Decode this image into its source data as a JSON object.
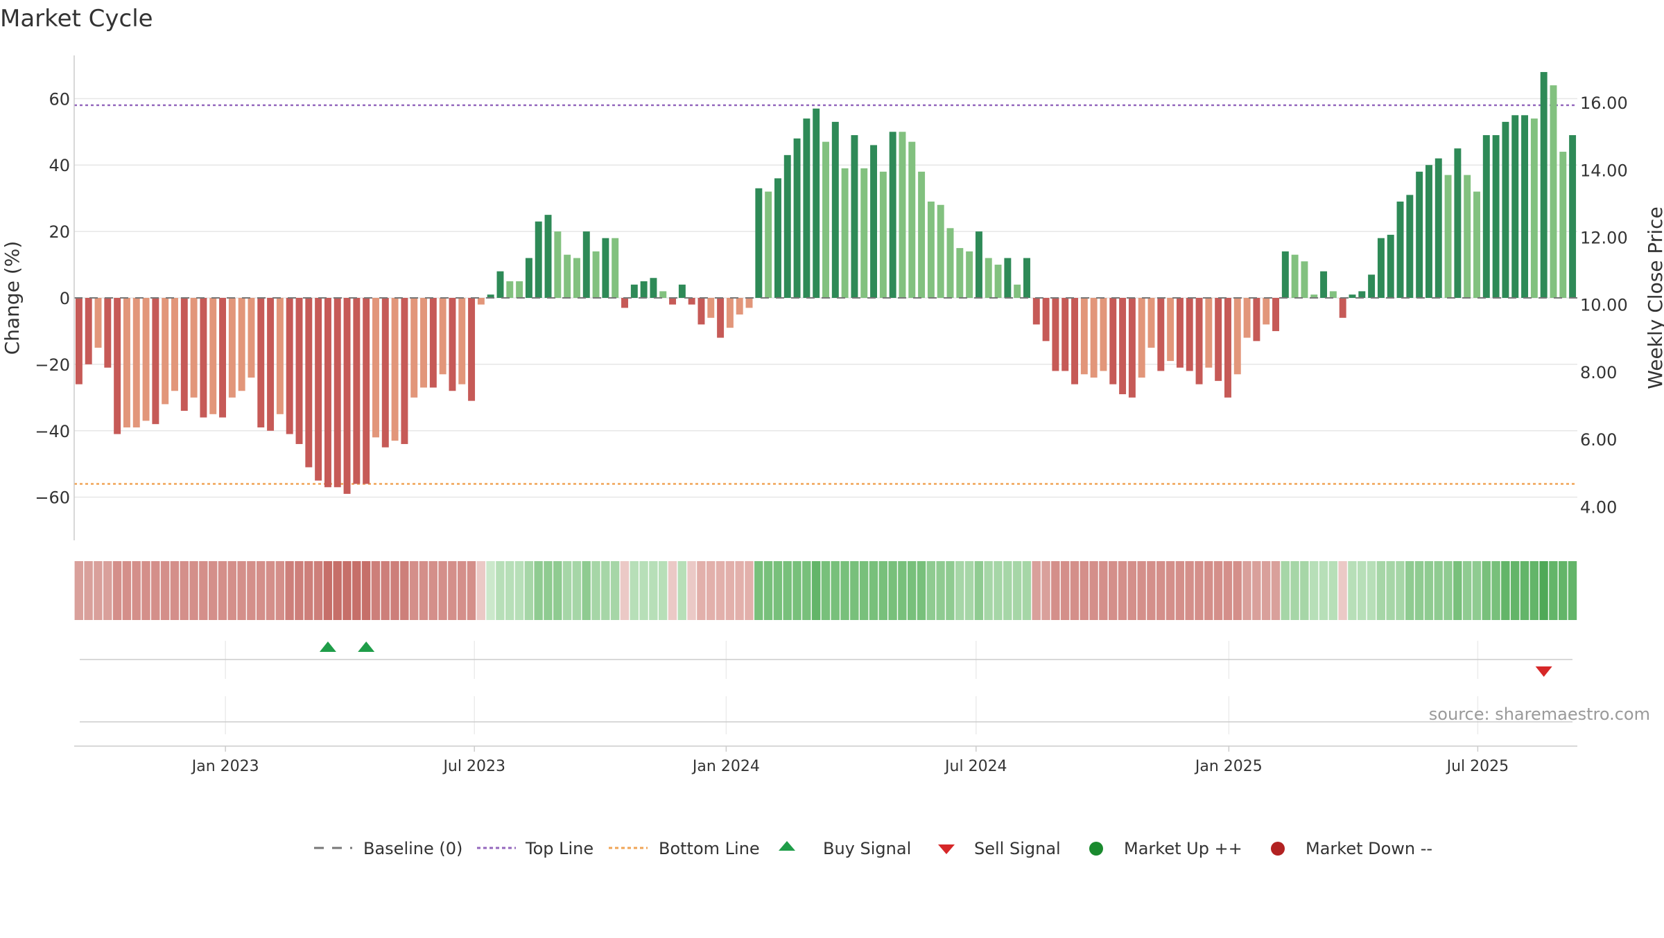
{
  "chart_data": {
    "type": "bar",
    "title": "Market Cycle",
    "ylabel": "Change (%)",
    "y2label": "Weekly Close Price",
    "ylim": [
      -73,
      73
    ],
    "y2lim": [
      3,
      17.4
    ],
    "yticks": [
      60,
      40,
      20,
      0,
      -20,
      -40,
      -60
    ],
    "ytick_labels": [
      "60",
      "40",
      "20",
      "0",
      "−20",
      "−40",
      "−60"
    ],
    "y2ticks": [
      16,
      14,
      12,
      10,
      8,
      6,
      4
    ],
    "y2tick_labels": [
      "16.00",
      "14.00",
      "12.00",
      "10.00",
      "8.00",
      "6.00",
      "4.00"
    ],
    "xtick_labels": [
      "Jan 2023",
      "Jul 2023",
      "Jan 2024",
      "Jul 2024",
      "Jan 2025",
      "Jul 2025"
    ],
    "xtick_weeks": [
      15.3,
      41.3,
      67.6,
      93.7,
      120.1,
      146.1
    ],
    "top_line": 58,
    "bottom_line": -56,
    "grid": true,
    "legend_position": "bottom-center",
    "source_text": "source: sharemaestro.com",
    "colors": {
      "dark_red": "#c65a57",
      "light_red": "#e2967a",
      "dark_green": "#2e8a57",
      "light_green": "#82c17f",
      "top_line": "#9467bd",
      "bottom_line": "#f0a456",
      "buy": "#1f9d49",
      "sell": "#d62728",
      "market_up": "#1a8a2e",
      "market_down": "#b22222"
    },
    "series": [
      {
        "name": "Change (%)",
        "values": [
          -26,
          -20,
          -15,
          -21,
          -41,
          -39,
          -39,
          -37,
          -38,
          -32,
          -28,
          -34,
          -30,
          -36,
          -35,
          -36,
          -30,
          -28,
          -24,
          -39,
          -40,
          -35,
          -41,
          -44,
          -51,
          -55,
          -57,
          -57,
          -59,
          -56,
          -56,
          -42,
          -45,
          -43,
          -44,
          -30,
          -27,
          -27,
          -23,
          -28,
          -26,
          -31,
          -2,
          1,
          8,
          5,
          5,
          12,
          23,
          25,
          20,
          13,
          12,
          20,
          14,
          18,
          18,
          -3,
          4,
          5,
          6,
          2,
          -2,
          4,
          -2,
          -8,
          -6,
          -12,
          -9,
          -5,
          -3,
          33,
          32,
          36,
          43,
          48,
          54,
          57,
          47,
          53,
          39,
          49,
          39,
          46,
          38,
          50,
          50,
          47,
          38,
          29,
          28,
          21,
          15,
          14,
          20,
          12,
          10,
          12,
          4,
          12,
          -8,
          -13,
          -22,
          -22,
          -26,
          -23,
          -24,
          -22,
          -26,
          -29,
          -30,
          -24,
          -15,
          -22,
          -19,
          -21,
          -22,
          -26,
          -21,
          -25,
          -30,
          -23,
          -12,
          -13,
          -8,
          -10,
          14,
          13,
          11,
          1,
          8,
          2,
          -6,
          1,
          2,
          7,
          18,
          19,
          29,
          31,
          38,
          40,
          42,
          37,
          45,
          37,
          32,
          49,
          49,
          53,
          55,
          55,
          54,
          68,
          64,
          44,
          49
        ],
        "shade": [
          1,
          1,
          0,
          1,
          1,
          0,
          0,
          0,
          1,
          0,
          0,
          1,
          0,
          1,
          0,
          1,
          0,
          0,
          0,
          1,
          1,
          0,
          1,
          1,
          1,
          1,
          1,
          1,
          1,
          1,
          1,
          0,
          1,
          0,
          1,
          0,
          0,
          1,
          0,
          1,
          0,
          1,
          0,
          1,
          1,
          0,
          0,
          1,
          1,
          1,
          0,
          0,
          0,
          1,
          0,
          1,
          0,
          1,
          1,
          1,
          1,
          0,
          1,
          1,
          1,
          1,
          0,
          1,
          0,
          0,
          0,
          1,
          0,
          1,
          1,
          1,
          1,
          1,
          0,
          1,
          0,
          1,
          0,
          1,
          0,
          1,
          0,
          0,
          0,
          0,
          0,
          0,
          0,
          0,
          1,
          0,
          0,
          1,
          0,
          1,
          1,
          1,
          1,
          1,
          1,
          0,
          0,
          0,
          1,
          1,
          1,
          0,
          0,
          1,
          0,
          1,
          1,
          1,
          0,
          1,
          1,
          0,
          0,
          1,
          0,
          1,
          1,
          0,
          0,
          0,
          1,
          0,
          1,
          1,
          1,
          1,
          1,
          1,
          1,
          1,
          1,
          1,
          1,
          0,
          1,
          0,
          0,
          1,
          1,
          1,
          1,
          1,
          0,
          1,
          0,
          0,
          1
        ]
      }
    ],
    "heat_strip": {
      "intensity": [
        3,
        3,
        3,
        3,
        4,
        4,
        4,
        4,
        4,
        4,
        4,
        4,
        4,
        4,
        4,
        4,
        4,
        4,
        4,
        4,
        4,
        4,
        5,
        5,
        5,
        5,
        6,
        6,
        6,
        6,
        6,
        5,
        5,
        5,
        5,
        4,
        4,
        4,
        4,
        4,
        4,
        4,
        1,
        1,
        2,
        2,
        2,
        3,
        4,
        4,
        4,
        3,
        3,
        4,
        3,
        3,
        3,
        1,
        2,
        2,
        2,
        2,
        1,
        2,
        1,
        2,
        2,
        2,
        2,
        2,
        2,
        5,
        5,
        5,
        5,
        5,
        5,
        6,
        5,
        5,
        5,
        5,
        5,
        5,
        5,
        5,
        5,
        5,
        5,
        4,
        4,
        4,
        3,
        3,
        4,
        3,
        3,
        3,
        3,
        3,
        3,
        3,
        4,
        4,
        4,
        4,
        4,
        4,
        4,
        4,
        4,
        4,
        4,
        4,
        4,
        4,
        4,
        4,
        4,
        4,
        4,
        4,
        3,
        3,
        3,
        3,
        3,
        3,
        3,
        2,
        2,
        2,
        1,
        2,
        2,
        2,
        3,
        3,
        3,
        4,
        4,
        4,
        4,
        4,
        5,
        4,
        4,
        5,
        5,
        6,
        6,
        6,
        6,
        7,
        6,
        6,
        6
      ]
    },
    "buy_signals_weeks": [
      26,
      30
    ],
    "sell_signals_weeks": [
      153
    ]
  },
  "legend": {
    "baseline": "Baseline (0)",
    "top_line": "Top Line",
    "bottom_line": "Bottom Line",
    "buy_signal": "Buy Signal",
    "sell_signal": "Sell Signal",
    "market_up": "Market Up ++",
    "market_down": "Market Down --"
  }
}
